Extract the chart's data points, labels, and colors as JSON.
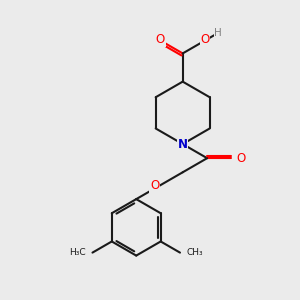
{
  "bg_color": "#ebebeb",
  "bond_color": "#1a1a1a",
  "atom_colors": {
    "O": "#ff0000",
    "N": "#0000cc",
    "H": "#808080",
    "C": "#1a1a1a"
  },
  "figsize": [
    3.0,
    3.0
  ],
  "dpi": 100
}
